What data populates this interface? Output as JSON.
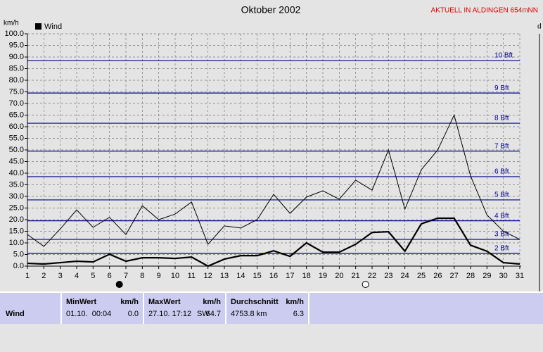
{
  "chart_data": {
    "type": "line",
    "title": "Oktober 2002",
    "subtitle": "AKTUELL IN ALDINGEN 654mNN",
    "y_label": "km/h",
    "y2_label": "d",
    "legend": "top-left",
    "x": [
      1,
      2,
      3,
      4,
      5,
      6,
      7,
      8,
      9,
      10,
      11,
      12,
      13,
      14,
      15,
      16,
      17,
      18,
      19,
      20,
      21,
      22,
      23,
      24,
      25,
      26,
      27,
      28,
      29,
      30,
      31
    ],
    "xlim": [
      1,
      31
    ],
    "xticks": [
      1,
      2,
      3,
      4,
      5,
      6,
      7,
      8,
      9,
      10,
      11,
      12,
      13,
      14,
      15,
      16,
      17,
      18,
      19,
      20,
      21,
      22,
      23,
      24,
      25,
      26,
      27,
      28,
      29,
      30,
      31
    ],
    "ylim": [
      0,
      100
    ],
    "yticks": [
      {
        "value": 0,
        "label": "0.0"
      },
      {
        "value": 5,
        "label": "5.0"
      },
      {
        "value": 10,
        "label": "10.0"
      },
      {
        "value": 15,
        "label": "15.0"
      },
      {
        "value": 20,
        "label": "20.0"
      },
      {
        "value": 25,
        "label": "25.0"
      },
      {
        "value": 30,
        "label": "30.0"
      },
      {
        "value": 35,
        "label": "35.0"
      },
      {
        "value": 40,
        "label": "40.0"
      },
      {
        "value": 45,
        "label": "45.0"
      },
      {
        "value": 50,
        "label": "50.0"
      },
      {
        "value": 55,
        "label": "55.0"
      },
      {
        "value": 60,
        "label": "60.0"
      },
      {
        "value": 65,
        "label": "65.0"
      },
      {
        "value": 70,
        "label": "70.0"
      },
      {
        "value": 75,
        "label": "75.0"
      },
      {
        "value": 80,
        "label": "80.0"
      },
      {
        "value": 85,
        "label": "85.0"
      },
      {
        "value": 90,
        "label": "90.0"
      },
      {
        "value": 95,
        "label": "95.0"
      },
      {
        "value": 100,
        "label": "100.0"
      }
    ],
    "grid": true,
    "series": [
      {
        "name": "Wind",
        "color": "#000000",
        "width": 2.2,
        "values": [
          1.2,
          0.9,
          1.5,
          2.1,
          1.8,
          5.1,
          2.1,
          3.6,
          3.6,
          3.3,
          3.9,
          0,
          3,
          4.5,
          4.5,
          6.6,
          4.2,
          10,
          6,
          6,
          9.4,
          14.5,
          14.8,
          6.4,
          18.2,
          20.6,
          20.6,
          9,
          6.4,
          1.5,
          0.9
        ]
      },
      {
        "color": "#000000",
        "width": 1,
        "values": [
          13.6,
          8.5,
          16,
          24.2,
          16.7,
          21,
          13.6,
          26,
          20,
          22.4,
          27.6,
          9.4,
          17.3,
          16.4,
          20,
          30.9,
          22.7,
          29.7,
          32.4,
          28.8,
          37,
          32.7,
          50,
          24.5,
          41.5,
          50,
          65,
          38.8,
          22,
          15,
          11.5
        ]
      }
    ],
    "reference_lines": [
      {
        "value": 5.5,
        "label": "2 Bft"
      },
      {
        "value": 11.5,
        "label": "3 Bft"
      },
      {
        "value": 19.5,
        "label": "4 Bft"
      },
      {
        "value": 28.5,
        "label": "5 Bft"
      },
      {
        "value": 38.5,
        "label": "6 Bft"
      },
      {
        "value": 49.5,
        "label": "7 Bft"
      },
      {
        "value": 61.5,
        "label": "8 Bft"
      },
      {
        "value": 74.5,
        "label": "9 Bft"
      },
      {
        "value": 88.5,
        "label": "10 Bft"
      }
    ],
    "reference_color": "#00008b",
    "moons": [
      {
        "x": 6.6,
        "filled": true
      },
      {
        "x": 21.6,
        "filled": false
      }
    ]
  },
  "table": {
    "row_label": "Wind",
    "columns": [
      {
        "title": "MinWert",
        "unit": "km/h",
        "time": "01.10.  00:04",
        "value": "0.0"
      },
      {
        "title": "MaxWert",
        "unit": "km/h",
        "time": "27.10. 17:12",
        "direction": "SW",
        "value": "64.7"
      },
      {
        "title": "Durchschnitt",
        "unit": "km/h",
        "time": "4753.8 km",
        "value": "6.3"
      }
    ]
  }
}
